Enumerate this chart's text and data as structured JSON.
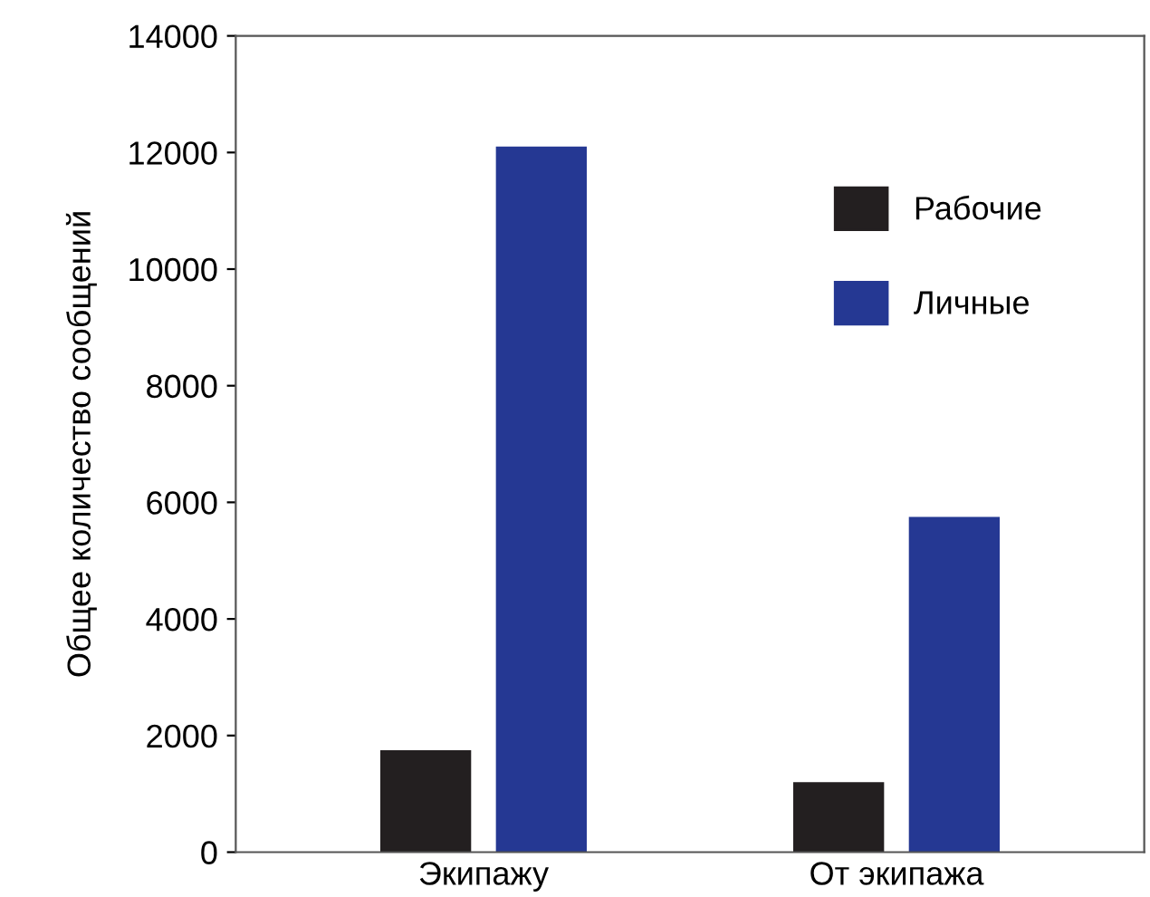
{
  "chart_data": {
    "type": "bar",
    "ylabel": "Общее количество сообщений",
    "categories": [
      "Экипажу",
      "От экипажа"
    ],
    "series": [
      {
        "name": "Рабочие",
        "color": "#231f20",
        "values": [
          1750,
          1200
        ]
      },
      {
        "name": "Личные",
        "color": "#253893",
        "values": [
          12100,
          5750
        ]
      }
    ],
    "ylim": [
      0,
      14000
    ],
    "yticks": [
      0,
      2000,
      4000,
      6000,
      8000,
      10000,
      12000,
      14000
    ],
    "grid": false,
    "legend": "top right"
  }
}
